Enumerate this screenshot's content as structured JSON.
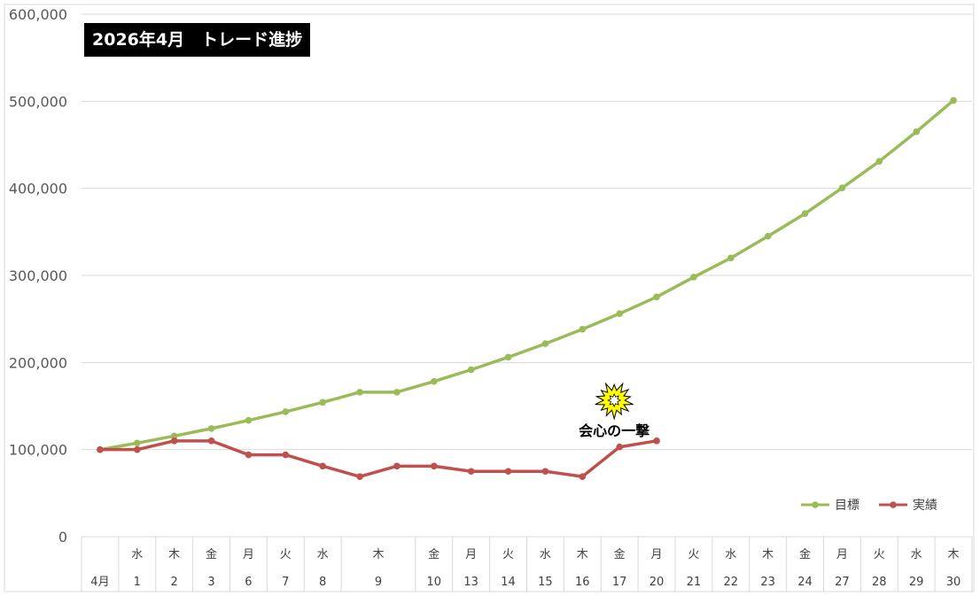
{
  "chart_data": {
    "type": "line",
    "title": "2026年4月　トレード進捗",
    "xlabel": "",
    "ylabel": "",
    "ylim": [
      0,
      600000
    ],
    "yticks": [
      0,
      100000,
      200000,
      300000,
      400000,
      500000,
      600000
    ],
    "ytick_labels": [
      "0",
      "100,000",
      "200,000",
      "300,000",
      "400,000",
      "500,000",
      "600,000"
    ],
    "grid": true,
    "legend_position": "bottom-right",
    "categories": [
      {
        "weekday": "",
        "day": "4月"
      },
      {
        "weekday": "水",
        "day": "1"
      },
      {
        "weekday": "木",
        "day": "2"
      },
      {
        "weekday": "金",
        "day": "3"
      },
      {
        "weekday": "月",
        "day": "6"
      },
      {
        "weekday": "火",
        "day": "7"
      },
      {
        "weekday": "水",
        "day": "8"
      },
      {
        "weekday": "木",
        "day": "9"
      },
      {
        "weekday": "",
        "day": ""
      },
      {
        "weekday": "金",
        "day": "10"
      },
      {
        "weekday": "月",
        "day": "13"
      },
      {
        "weekday": "火",
        "day": "14"
      },
      {
        "weekday": "水",
        "day": "15"
      },
      {
        "weekday": "木",
        "day": "16"
      },
      {
        "weekday": "金",
        "day": "17"
      },
      {
        "weekday": "月",
        "day": "20"
      },
      {
        "weekday": "火",
        "day": "21"
      },
      {
        "weekday": "水",
        "day": "22"
      },
      {
        "weekday": "木",
        "day": "23"
      },
      {
        "weekday": "金",
        "day": "24"
      },
      {
        "weekday": "月",
        "day": "27"
      },
      {
        "weekday": "火",
        "day": "28"
      },
      {
        "weekday": "水",
        "day": "29"
      },
      {
        "weekday": "木",
        "day": "30"
      }
    ],
    "series": [
      {
        "name": "目標",
        "color": "#9BBB59",
        "values": [
          100000,
          107500,
          115600,
          124200,
          133500,
          143500,
          154300,
          165900,
          165900,
          178300,
          191700,
          206100,
          221600,
          238200,
          256100,
          275300,
          298000,
          320000,
          345000,
          371000,
          400500,
          431000,
          465000,
          501000
        ]
      },
      {
        "name": "実績",
        "color": "#C0504D",
        "values": [
          100000,
          100000,
          110000,
          110000,
          94000,
          94000,
          81000,
          69000,
          81000,
          81000,
          75000,
          75000,
          75000,
          69000,
          103000,
          110000,
          null,
          null,
          null,
          null,
          null,
          null,
          null,
          null
        ]
      }
    ],
    "annotation": {
      "text": "会心の一撃",
      "category_index": 14,
      "icon": "explosion-burst-icon",
      "icon_color": "#FFFF00"
    }
  }
}
